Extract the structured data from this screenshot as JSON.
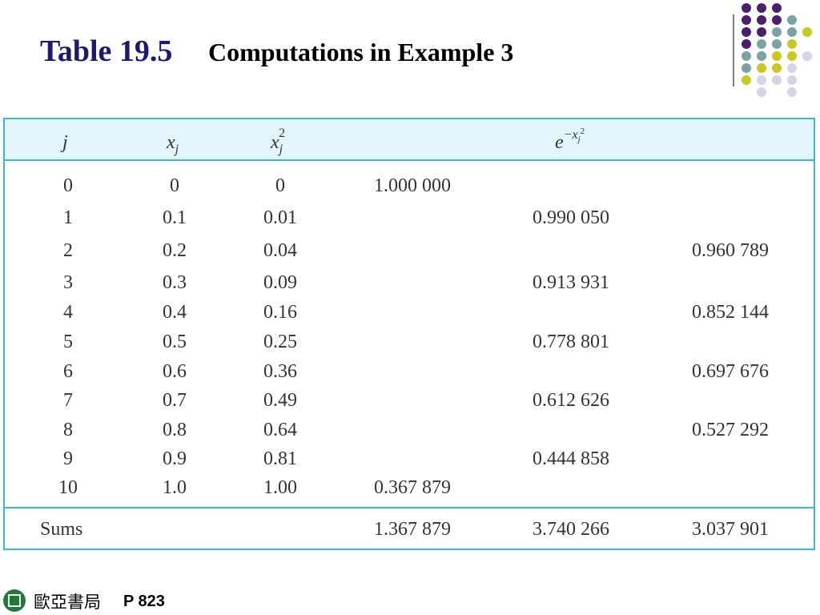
{
  "header": {
    "label": "Table 19.5",
    "title": "Computations in Example 3"
  },
  "table": {
    "columns": [
      {
        "base": "j"
      },
      {
        "base": "x",
        "sub": "j"
      },
      {
        "base": "x",
        "sub": "j",
        "sup": "2"
      },
      {
        "base": "e",
        "sup": "−x",
        "sup_sub": "j",
        "sup_sup": "2"
      }
    ],
    "rows": [
      [
        "0",
        "0",
        "0",
        "1.000 000",
        null,
        null
      ],
      [
        "1",
        "0.1",
        "0.01",
        null,
        "0.990 050",
        null
      ],
      [
        "2",
        "0.2",
        "0.04",
        null,
        null,
        "0.960 789"
      ],
      [
        "3",
        "0.3",
        "0.09",
        null,
        "0.913 931",
        null
      ],
      [
        "4",
        "0.4",
        "0.16",
        null,
        null,
        "0.852 144"
      ],
      [
        "5",
        "0.5",
        "0.25",
        null,
        "0.778 801",
        null
      ],
      [
        "6",
        "0.6",
        "0.36",
        null,
        null,
        "0.697 676"
      ],
      [
        "7",
        "0.7",
        "0.49",
        null,
        "0.612 626",
        null
      ],
      [
        "8",
        "0.8",
        "0.64",
        null,
        null,
        "0.527 292"
      ],
      [
        "9",
        "0.9",
        "0.81",
        null,
        "0.444 858",
        null
      ],
      [
        "10",
        "1.0",
        "1.00",
        "0.367 879",
        null,
        null
      ]
    ],
    "sums": [
      "Sums",
      null,
      null,
      "1.367 879",
      "3.740 266",
      "3.037 901"
    ]
  },
  "footer": {
    "publisher": "歐亞書局",
    "page": "P 823"
  }
}
